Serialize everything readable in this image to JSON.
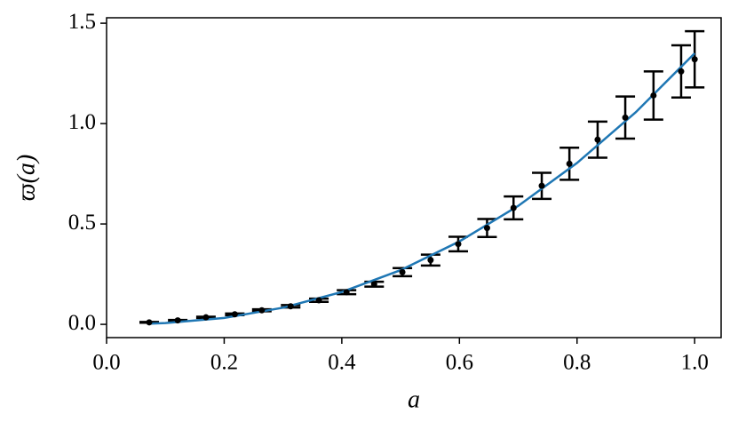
{
  "chart_data": {
    "type": "scatter",
    "xlabel": "a",
    "ylabel": "ϖ(a)",
    "x": [
      0.0725,
      0.121,
      0.169,
      0.218,
      0.264,
      0.313,
      0.361,
      0.408,
      0.455,
      0.503,
      0.551,
      0.598,
      0.647,
      0.692,
      0.74,
      0.787,
      0.835,
      0.882,
      0.93,
      0.977,
      1.0
    ],
    "series": [
      {
        "color": "#000000",
        "values": [
          0.01,
          0.02,
          0.035,
          0.05,
          0.07,
          0.09,
          0.12,
          0.16,
          0.2,
          0.26,
          0.32,
          0.4,
          0.48,
          0.58,
          0.69,
          0.8,
          0.92,
          1.03,
          1.14,
          1.26,
          1.32
        ],
        "errors": [
          0.002,
          0.002,
          0.003,
          0.004,
          0.005,
          0.006,
          0.008,
          0.01,
          0.012,
          0.02,
          0.027,
          0.036,
          0.045,
          0.057,
          0.065,
          0.08,
          0.09,
          0.105,
          0.12,
          0.13,
          0.14
        ]
      }
    ],
    "fit": {
      "color": "#1f77b4",
      "x": [
        0.07,
        0.1,
        0.2,
        0.3,
        0.4,
        0.5,
        0.6,
        0.7,
        0.8,
        0.9,
        1.0
      ],
      "values": [
        0.003,
        0.0065,
        0.032,
        0.083,
        0.161,
        0.27,
        0.413,
        0.59,
        0.804,
        1.057,
        1.35
      ]
    },
    "xlim": [
      0,
      1.045
    ],
    "ylim": [
      -0.066,
      1.527
    ],
    "xticks": [
      {
        "value": 0,
        "label": "0.0"
      },
      {
        "value": 0.2,
        "label": "0.2"
      },
      {
        "value": 0.4,
        "label": "0.4"
      },
      {
        "value": 0.6,
        "label": "0.6"
      },
      {
        "value": 0.8,
        "label": "0.8"
      },
      {
        "value": 1,
        "label": "1.0"
      }
    ],
    "yticks": [
      {
        "value": 0,
        "label": "0.0"
      },
      0.5,
      {
        "value": 1,
        "label": "1.0"
      },
      {
        "value": 1.5,
        "label": "1.5"
      }
    ],
    "grid": false
  }
}
